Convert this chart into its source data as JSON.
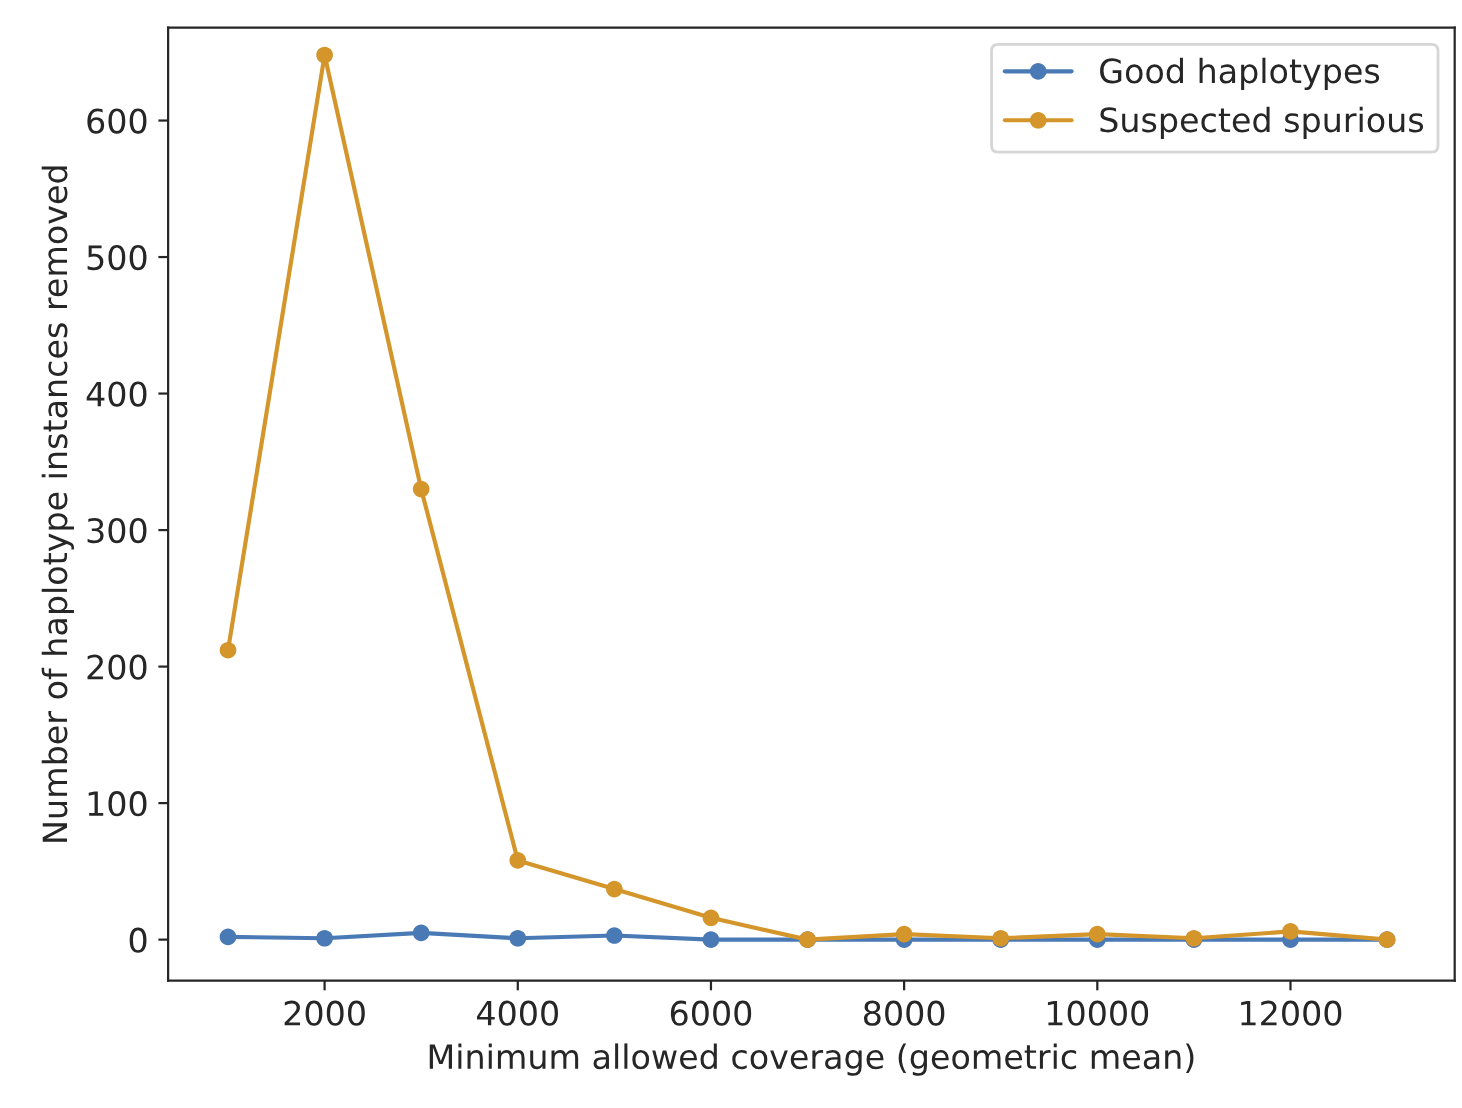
{
  "chart_data": {
    "type": "line",
    "xlabel": "Minimum allowed coverage (geometric mean)",
    "ylabel": "Number of haplotype instances removed",
    "x": [
      1000,
      2000,
      3000,
      4000,
      5000,
      6000,
      7000,
      8000,
      9000,
      10000,
      11000,
      12000,
      13000
    ],
    "series": [
      {
        "name": "Good haplotypes",
        "color": "#4a7ab5",
        "values": [
          2,
          1,
          5,
          1,
          3,
          0,
          0,
          0,
          0,
          0,
          0,
          0,
          0
        ]
      },
      {
        "name": "Suspected spurious",
        "color": "#d4952b",
        "values": [
          212,
          648,
          330,
          58,
          37,
          16,
          0,
          4,
          1,
          4,
          1,
          6,
          0
        ]
      }
    ],
    "xlim": [
      380,
      13700
    ],
    "xticks": [
      2000,
      4000,
      6000,
      8000,
      10000,
      12000
    ],
    "ylim": [
      -30,
      668
    ],
    "yticks": [
      0,
      100,
      200,
      300,
      400,
      500,
      600
    ],
    "grid": false,
    "legend": "top right",
    "marker": "circle",
    "line_style": "solid"
  }
}
